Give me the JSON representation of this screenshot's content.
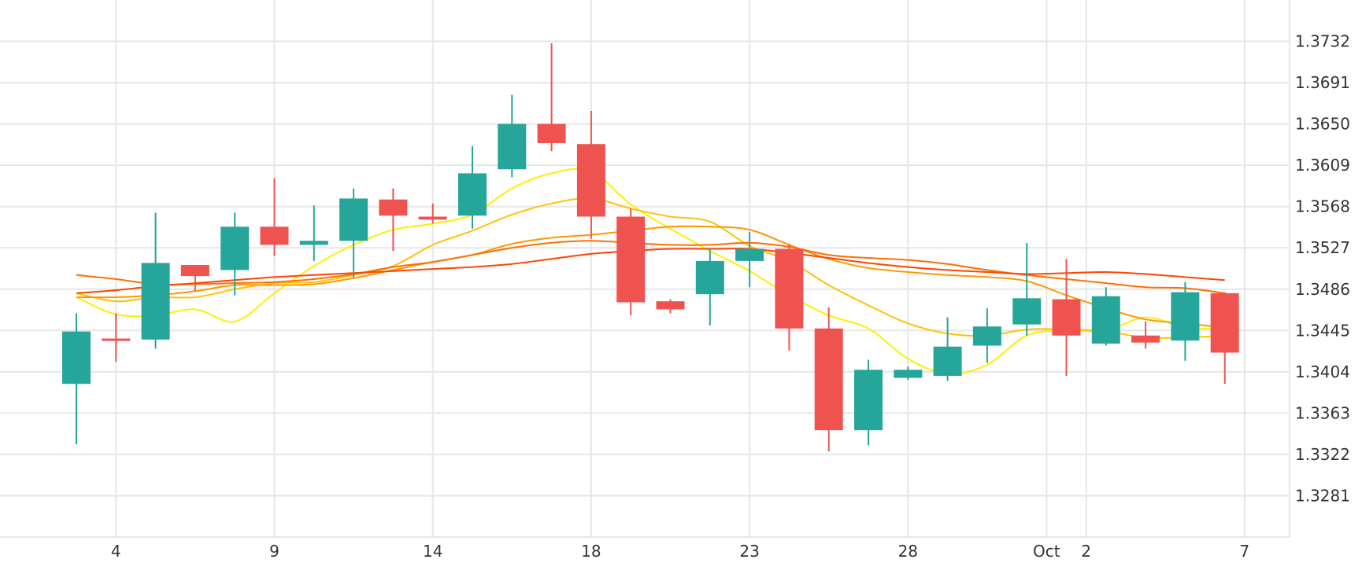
{
  "colors": {
    "up": "#26a69a",
    "down": "#ef5350",
    "grid": "#e6e6e6",
    "axis_text": "#333333",
    "ma": [
      "#ffee00",
      "#ffc107",
      "#ff9800",
      "#ff6f00",
      "#ff4400"
    ]
  },
  "chart_data": {
    "type": "candlestick",
    "x_tick_labels": [
      "4",
      "9",
      "14",
      "18",
      "23",
      "28",
      "Oct",
      "2",
      "7"
    ],
    "y_tick_labels": [
      "1.3732",
      "1.3691",
      "1.3650",
      "1.3609",
      "1.3568",
      "1.3527",
      "1.3486",
      "1.3445",
      "1.3404",
      "1.3363",
      "1.3322",
      "1.3281"
    ],
    "y_ticks": [
      1.3732,
      1.3691,
      1.365,
      1.3609,
      1.3568,
      1.3527,
      1.3486,
      1.3445,
      1.3404,
      1.3363,
      1.3322,
      1.3281
    ],
    "ylim": [
      1.324,
      1.3773
    ],
    "grid": true,
    "candles": [
      {
        "date": "Sep 3",
        "open": 1.3392,
        "high": 1.3462,
        "low": 1.3332,
        "close": 1.3444
      },
      {
        "date": "Sep 4",
        "open": 1.3437,
        "high": 1.3462,
        "low": 1.3414,
        "close": 1.3435
      },
      {
        "date": "Sep 5",
        "open": 1.3436,
        "high": 1.3562,
        "low": 1.3427,
        "close": 1.3512
      },
      {
        "date": "Sep 6",
        "open": 1.351,
        "high": 1.351,
        "low": 1.3484,
        "close": 1.3499
      },
      {
        "date": "Sep 7",
        "open": 1.3505,
        "high": 1.3562,
        "low": 1.348,
        "close": 1.3548
      },
      {
        "date": "Sep 8",
        "open": 1.3548,
        "high": 1.3596,
        "low": 1.3519,
        "close": 1.353
      },
      {
        "date": "Sep 9",
        "open": 1.353,
        "high": 1.3569,
        "low": 1.3514,
        "close": 1.3534
      },
      {
        "date": "Sep 10",
        "open": 1.3534,
        "high": 1.3586,
        "low": 1.3497,
        "close": 1.3576
      },
      {
        "date": "Sep 11",
        "open": 1.3575,
        "high": 1.3586,
        "low": 1.3524,
        "close": 1.3559
      },
      {
        "date": "Sep 12",
        "open": 1.3558,
        "high": 1.3571,
        "low": 1.3551,
        "close": 1.3555
      },
      {
        "date": "Sep 13",
        "open": 1.3559,
        "high": 1.3628,
        "low": 1.3546,
        "close": 1.3601
      },
      {
        "date": "Sep 14",
        "open": 1.3605,
        "high": 1.3679,
        "low": 1.3597,
        "close": 1.365
      },
      {
        "date": "Sep 15",
        "open": 1.365,
        "high": 1.373,
        "low": 1.3623,
        "close": 1.3631
      },
      {
        "date": "Sep 16",
        "open": 1.363,
        "high": 1.3663,
        "low": 1.3536,
        "close": 1.3558
      },
      {
        "date": "Sep 17",
        "open": 1.3558,
        "high": 1.3566,
        "low": 1.346,
        "close": 1.3473
      },
      {
        "date": "Sep 18",
        "open": 1.3474,
        "high": 1.3476,
        "low": 1.3462,
        "close": 1.3466
      },
      {
        "date": "Sep 19",
        "open": 1.3481,
        "high": 1.3526,
        "low": 1.345,
        "close": 1.3514
      },
      {
        "date": "Sep 20",
        "open": 1.3514,
        "high": 1.3543,
        "low": 1.3488,
        "close": 1.3526
      },
      {
        "date": "Sep 21",
        "open": 1.3526,
        "high": 1.3531,
        "low": 1.3425,
        "close": 1.3447
      },
      {
        "date": "Sep 22",
        "open": 1.3447,
        "high": 1.3468,
        "low": 1.3325,
        "close": 1.3346
      },
      {
        "date": "Sep 23",
        "open": 1.3346,
        "high": 1.3416,
        "low": 1.3331,
        "close": 1.3406
      },
      {
        "date": "Sep 24",
        "open": 1.3398,
        "high": 1.3409,
        "low": 1.3396,
        "close": 1.3406
      },
      {
        "date": "Sep 25",
        "open": 1.34,
        "high": 1.3458,
        "low": 1.3395,
        "close": 1.3429
      },
      {
        "date": "Sep 26",
        "open": 1.343,
        "high": 1.3467,
        "low": 1.3413,
        "close": 1.3449
      },
      {
        "date": "Sep 27",
        "open": 1.3451,
        "high": 1.3532,
        "low": 1.344,
        "close": 1.3477
      },
      {
        "date": "Sep 30",
        "open": 1.3476,
        "high": 1.3516,
        "low": 1.34,
        "close": 1.344
      },
      {
        "date": "Oct 1",
        "open": 1.3432,
        "high": 1.3488,
        "low": 1.343,
        "close": 1.3479
      },
      {
        "date": "Oct 2",
        "open": 1.344,
        "high": 1.3454,
        "low": 1.3427,
        "close": 1.3433
      },
      {
        "date": "Oct 3",
        "open": 1.3435,
        "high": 1.3493,
        "low": 1.3415,
        "close": 1.3483
      },
      {
        "date": "Oct 4",
        "open": 1.3482,
        "high": 1.3483,
        "low": 1.3392,
        "close": 1.3423
      }
    ],
    "moving_averages": [
      {
        "values": [
          1.3478,
          1.3461,
          1.346,
          1.3466,
          1.3454,
          1.3482,
          1.3509,
          1.353,
          1.3545,
          1.3551,
          1.356,
          1.3586,
          1.3601,
          1.3603,
          1.357,
          1.3546,
          1.3524,
          1.3504,
          1.348,
          1.346,
          1.3447,
          1.3417,
          1.3402,
          1.3411,
          1.344,
          1.3445,
          1.3445,
          1.3458,
          1.3448,
          1.3447
        ]
      },
      {
        "values": [
          1.3482,
          1.3474,
          1.3478,
          1.3478,
          1.3486,
          1.3492,
          1.3493,
          1.35,
          1.3509,
          1.353,
          1.3544,
          1.356,
          1.3571,
          1.3576,
          1.3566,
          1.3558,
          1.3553,
          1.3529,
          1.3514,
          1.349,
          1.347,
          1.3452,
          1.3442,
          1.344,
          1.3446,
          1.3446,
          1.3444,
          1.3438,
          1.3438,
          1.344
        ]
      },
      {
        "values": [
          1.3478,
          1.3478,
          1.348,
          1.3484,
          1.349,
          1.349,
          1.3491,
          1.3497,
          1.3505,
          1.3513,
          1.352,
          1.3531,
          1.3537,
          1.354,
          1.3544,
          1.3548,
          1.3548,
          1.3545,
          1.353,
          1.3516,
          1.3507,
          1.3503,
          1.35,
          1.3498,
          1.3494,
          1.348,
          1.3467,
          1.3456,
          1.3452,
          1.3448
        ]
      },
      {
        "values": [
          1.35,
          1.3496,
          1.3491,
          1.3491,
          1.3492,
          1.3493,
          1.3496,
          1.3501,
          1.3508,
          1.3513,
          1.352,
          1.3527,
          1.3532,
          1.3534,
          1.3532,
          1.353,
          1.353,
          1.3532,
          1.3528,
          1.352,
          1.3517,
          1.3515,
          1.3511,
          1.3505,
          1.35,
          1.3496,
          1.3492,
          1.3488,
          1.3487,
          1.3482
        ]
      },
      {
        "values": [
          1.3482,
          1.3485,
          1.3489,
          1.3492,
          1.3495,
          1.3498,
          1.35,
          1.3502,
          1.3504,
          1.3506,
          1.3508,
          1.3511,
          1.3516,
          1.3521,
          1.3524,
          1.3526,
          1.3526,
          1.3526,
          1.3522,
          1.3517,
          1.3512,
          1.3508,
          1.3505,
          1.3503,
          1.3501,
          1.3502,
          1.3503,
          1.3501,
          1.3498,
          1.3495
        ]
      }
    ]
  }
}
